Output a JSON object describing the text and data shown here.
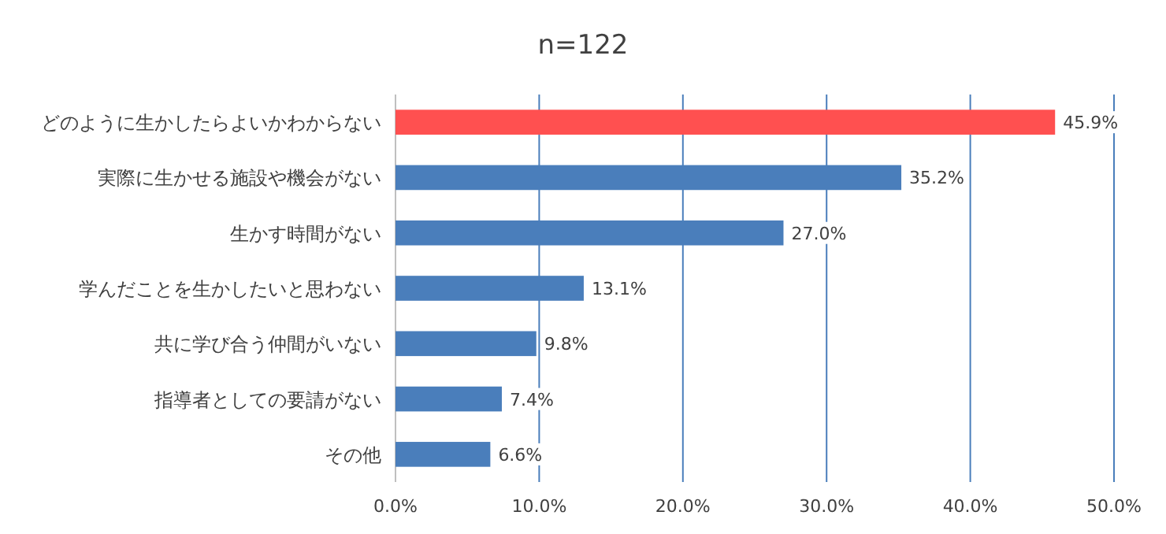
{
  "chart_data": {
    "type": "bar",
    "orientation": "horizontal",
    "title": "n=122",
    "categories": [
      "どのように生かしたらよいかわからない",
      "実際に生かせる施設や機会がない",
      "生かす時間がない",
      "学んだことを生かしたいと思わない",
      "共に学び合う仲間がいない",
      "指導者としての要請がない",
      "その他"
    ],
    "values": [
      45.9,
      35.2,
      27.0,
      13.1,
      9.8,
      7.4,
      6.6
    ],
    "value_labels": [
      "45.9%",
      "35.2%",
      "27.0%",
      "13.1%",
      "9.8%",
      "7.4%",
      "6.6%"
    ],
    "colors": [
      "#ff5050",
      "#4a7ebb",
      "#4a7ebb",
      "#4a7ebb",
      "#4a7ebb",
      "#4a7ebb",
      "#4a7ebb"
    ],
    "xlim": [
      0,
      50
    ],
    "xticks": [
      {
        "value": 0,
        "label": "0.0%"
      },
      {
        "value": 10,
        "label": "10.0%"
      },
      {
        "value": 20,
        "label": "20.0%"
      },
      {
        "value": 30,
        "label": "30.0%"
      },
      {
        "value": 40,
        "label": "40.0%"
      },
      {
        "value": 50,
        "label": "50.0%"
      }
    ],
    "grid": "x"
  }
}
